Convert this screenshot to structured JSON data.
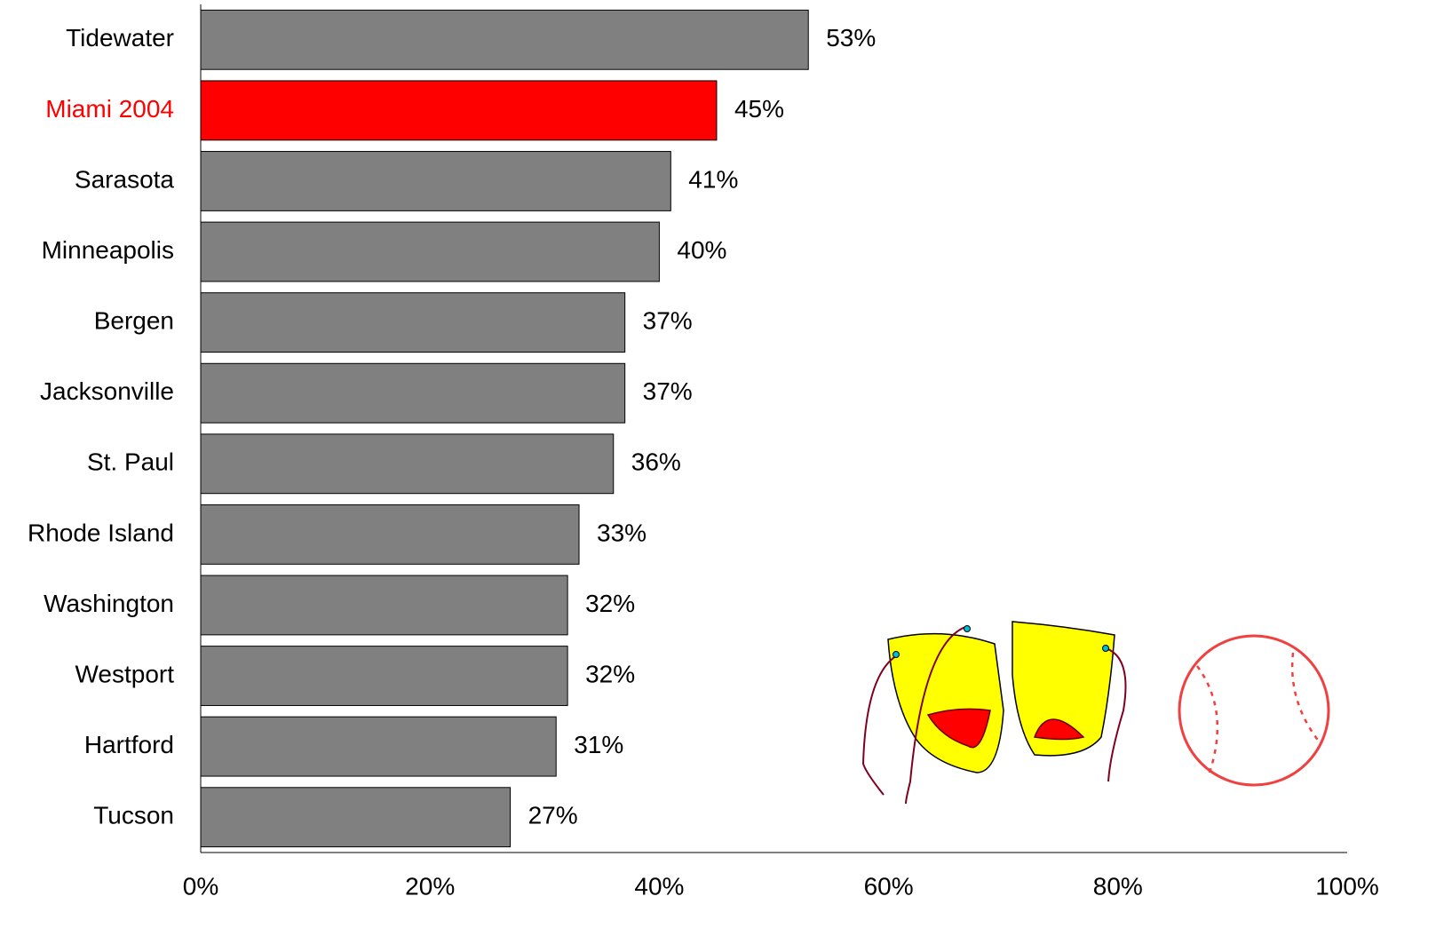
{
  "chart_data": {
    "type": "bar",
    "categories": [
      "Tidewater",
      "Miami 2004",
      "Sarasota",
      "Minneapolis",
      "Bergen",
      "Jacksonville",
      "St. Paul",
      "Rhode Island",
      "Washington",
      "Westport",
      "Hartford",
      "Tucson"
    ],
    "values": [
      53,
      45,
      41,
      40,
      37,
      37,
      36,
      33,
      32,
      32,
      31,
      27
    ],
    "value_labels": [
      "53%",
      "45%",
      "41%",
      "40%",
      "37%",
      "37%",
      "36%",
      "33%",
      "32%",
      "32%",
      "31%",
      "27%"
    ],
    "color": "#808080",
    "colors": [
      "#808080",
      "#ff0000",
      "#808080",
      "#808080",
      "#808080",
      "#808080",
      "#808080",
      "#808080",
      "#808080",
      "#808080",
      "#808080",
      "#808080"
    ],
    "xlim": [
      0,
      100
    ],
    "xticks": [
      {
        "value": 0,
        "label": "0%"
      },
      {
        "value": 20,
        "label": "20%"
      },
      {
        "value": 40,
        "label": "40%"
      },
      {
        "value": 60,
        "label": "60%"
      },
      {
        "value": 80,
        "label": "80%"
      },
      {
        "value": 100,
        "label": "100%"
      }
    ],
    "grid": false
  }
}
